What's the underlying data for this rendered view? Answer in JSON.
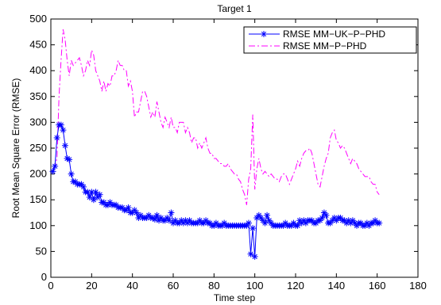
{
  "chart_data": {
    "type": "line",
    "title": "Target 1",
    "xlabel": "Time step",
    "ylabel": "Root Mean Square Error (RMSE)",
    "xlim": [
      0,
      180
    ],
    "ylim": [
      0,
      500
    ],
    "xticks": [
      "0",
      "20",
      "40",
      "60",
      "80",
      "100",
      "120",
      "140",
      "160",
      "180"
    ],
    "yticks": [
      "0",
      "50",
      "100",
      "150",
      "200",
      "250",
      "300",
      "350",
      "400",
      "450",
      "500"
    ],
    "grid": false,
    "legend_position": "top-right",
    "series": [
      {
        "name": "RMSE MM−UK−P−PHD",
        "color": "#0000ff",
        "line_style": "solid",
        "marker": "asterisk",
        "x": [
          1,
          2,
          3,
          4,
          5,
          6,
          7,
          8,
          9,
          10,
          11,
          12,
          13,
          14,
          15,
          16,
          17,
          18,
          19,
          20,
          21,
          22,
          23,
          24,
          25,
          26,
          27,
          28,
          29,
          30,
          31,
          32,
          33,
          34,
          35,
          36,
          37,
          38,
          39,
          40,
          41,
          42,
          43,
          44,
          45,
          46,
          47,
          48,
          49,
          50,
          51,
          52,
          53,
          54,
          55,
          56,
          57,
          58,
          59,
          60,
          61,
          62,
          63,
          64,
          65,
          66,
          67,
          68,
          69,
          70,
          71,
          72,
          73,
          74,
          75,
          76,
          77,
          78,
          79,
          80,
          81,
          82,
          83,
          84,
          85,
          86,
          87,
          88,
          89,
          90,
          91,
          92,
          93,
          94,
          95,
          96,
          97,
          98,
          99,
          100,
          101,
          102,
          103,
          104,
          105,
          106,
          107,
          108,
          109,
          110,
          111,
          112,
          113,
          114,
          115,
          116,
          117,
          118,
          119,
          120,
          121,
          122,
          123,
          124,
          125,
          126,
          127,
          128,
          129,
          130,
          131,
          132,
          133,
          134,
          135,
          136,
          137,
          138,
          139,
          140,
          141,
          142,
          143,
          144,
          145,
          146,
          147,
          148,
          149,
          150,
          151,
          152,
          153,
          154,
          155,
          156,
          157,
          158,
          159,
          160,
          161
        ],
        "y": [
          205,
          215,
          270,
          295,
          295,
          285,
          255,
          230,
          228,
          200,
          185,
          185,
          180,
          180,
          180,
          175,
          165,
          165,
          155,
          165,
          150,
          165,
          155,
          160,
          145,
          145,
          140,
          140,
          145,
          140,
          140,
          140,
          135,
          135,
          135,
          130,
          130,
          135,
          125,
          125,
          130,
          125,
          115,
          120,
          115,
          115,
          115,
          120,
          115,
          115,
          112,
          120,
          110,
          115,
          110,
          110,
          115,
          110,
          125,
          105,
          110,
          105,
          105,
          110,
          105,
          110,
          105,
          110,
          105,
          105,
          105,
          105,
          110,
          105,
          105,
          110,
          105,
          105,
          100,
          100,
          105,
          100,
          100,
          100,
          105,
          100,
          100,
          100,
          100,
          100,
          100,
          100,
          100,
          100,
          100,
          100,
          105,
          45,
          95,
          40,
          115,
          120,
          115,
          110,
          105,
          120,
          110,
          105,
          100,
          100,
          100,
          100,
          100,
          100,
          105,
          100,
          100,
          100,
          105,
          100,
          100,
          110,
          105,
          110,
          105,
          110,
          110,
          110,
          105,
          105,
          110,
          110,
          115,
          125,
          120,
          105,
          105,
          110,
          115,
          110,
          115,
          115,
          110,
          110,
          105,
          110,
          105,
          110,
          105,
          100,
          105,
          105,
          100,
          100,
          105,
          100,
          105,
          105,
          110,
          105,
          105
        ]
      },
      {
        "name": "RMSE MM−P−PHD",
        "color": "#ff00ff",
        "line_style": "dashdot",
        "marker": "none",
        "x": [
          1,
          2,
          3,
          4,
          5,
          6,
          7,
          8,
          9,
          10,
          11,
          12,
          13,
          14,
          15,
          16,
          17,
          18,
          19,
          20,
          21,
          22,
          23,
          24,
          25,
          26,
          27,
          28,
          29,
          30,
          31,
          32,
          33,
          34,
          35,
          36,
          37,
          38,
          39,
          40,
          41,
          42,
          43,
          44,
          45,
          46,
          47,
          48,
          49,
          50,
          51,
          52,
          53,
          54,
          55,
          56,
          57,
          58,
          59,
          60,
          61,
          62,
          63,
          64,
          65,
          66,
          67,
          68,
          69,
          70,
          71,
          72,
          73,
          74,
          75,
          76,
          77,
          78,
          79,
          80,
          81,
          82,
          83,
          84,
          85,
          86,
          87,
          88,
          89,
          90,
          91,
          92,
          93,
          94,
          95,
          96,
          97,
          98,
          99,
          100,
          101,
          102,
          103,
          104,
          105,
          106,
          107,
          108,
          109,
          110,
          111,
          112,
          113,
          114,
          115,
          116,
          117,
          118,
          119,
          120,
          121,
          122,
          123,
          124,
          125,
          126,
          127,
          128,
          129,
          130,
          131,
          132,
          133,
          134,
          135,
          136,
          137,
          138,
          139,
          140,
          141,
          142,
          143,
          144,
          145,
          146,
          147,
          148,
          149,
          150,
          151,
          152,
          153,
          154,
          155,
          156,
          157,
          158,
          159,
          160,
          161
        ],
        "y": [
          210,
          215,
          230,
          350,
          420,
          480,
          460,
          420,
          390,
          420,
          410,
          415,
          420,
          425,
          410,
          390,
          400,
          420,
          410,
          440,
          430,
          400,
          390,
          380,
          360,
          380,
          360,
          375,
          370,
          390,
          390,
          400,
          420,
          410,
          410,
          400,
          400,
          370,
          380,
          360,
          310,
          320,
          320,
          340,
          360,
          360,
          350,
          330,
          310,
          320,
          310,
          340,
          320,
          300,
          290,
          310,
          300,
          290,
          310,
          290,
          290,
          280,
          300,
          300,
          300,
          280,
          290,
          280,
          260,
          270,
          270,
          250,
          260,
          250,
          260,
          270,
          250,
          240,
          240,
          230,
          230,
          225,
          220,
          220,
          215,
          215,
          220,
          210,
          205,
          200,
          200,
          190,
          185,
          170,
          160,
          140,
          190,
          210,
          315,
          170,
          210,
          230,
          210,
          200,
          205,
          200,
          195,
          200,
          195,
          190,
          190,
          185,
          195,
          200,
          200,
          190,
          180,
          190,
          200,
          210,
          225,
          215,
          230,
          240,
          245,
          245,
          250,
          240,
          220,
          200,
          180,
          175,
          195,
          215,
          230,
          240,
          270,
          280,
          285,
          265,
          260,
          250,
          255,
          250,
          240,
          230,
          220,
          230,
          225,
          220,
          210,
          205,
          200,
          195,
          195,
          195,
          185,
          180,
          180,
          165,
          160
        ]
      }
    ]
  }
}
